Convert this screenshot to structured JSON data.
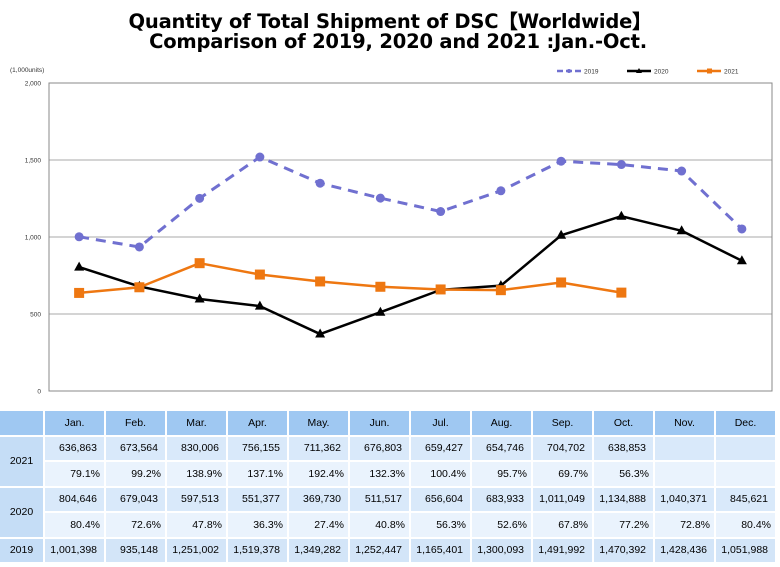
{
  "title": {
    "line1": "Quantity of Total Shipment of DSC【Worldwide】",
    "line2": "Comparison of 2019, 2020 and 2021 :Jan.-Oct."
  },
  "chart_data": {
    "type": "line",
    "title": "Quantity of Total Shipment of DSC【Worldwide】 Comparison of 2019, 2020 and 2021 :Jan.-Oct.",
    "unit_label": "(1,000units)",
    "xlabel": "",
    "ylabel": "(1,000units)",
    "ylim": [
      0,
      2000
    ],
    "yticks": [
      0,
      500,
      1000,
      1500,
      2000
    ],
    "ytick_labels": [
      "0",
      "500",
      "1,000",
      "1,500",
      "2,000"
    ],
    "grid": true,
    "legend_position": "top-right",
    "categories": [
      "Jan.",
      "Feb.",
      "Mar.",
      "Apr.",
      "May.",
      "Jun.",
      "Jul.",
      "Aug.",
      "Sep.",
      "Oct.",
      "Nov.",
      "Dec."
    ],
    "series": [
      {
        "name": "2019",
        "color": "#7070d0",
        "style": "dashed",
        "marker": "circle",
        "values": [
          1001.398,
          935.148,
          1251.002,
          1519.378,
          1349.282,
          1252.447,
          1165.401,
          1300.093,
          1491.992,
          1470.392,
          1428.436,
          1051.988
        ]
      },
      {
        "name": "2020",
        "color": "#000000",
        "style": "solid",
        "marker": "triangle",
        "values": [
          804.646,
          679.043,
          597.513,
          551.377,
          369.73,
          511.517,
          656.604,
          683.933,
          1011.049,
          1134.888,
          1040.371,
          845.621
        ]
      },
      {
        "name": "2021",
        "color": "#ee7711",
        "style": "solid",
        "marker": "square",
        "values": [
          636.863,
          673.564,
          830.006,
          756.155,
          711.362,
          676.803,
          659.427,
          654.746,
          704.702,
          638.853,
          null,
          null
        ]
      }
    ]
  },
  "table": {
    "months": [
      "Jan.",
      "Feb.",
      "Mar.",
      "Apr.",
      "May.",
      "Jun.",
      "Jul.",
      "Aug.",
      "Sep.",
      "Oct.",
      "Nov.",
      "Dec."
    ],
    "rows": [
      {
        "year": "2021",
        "values": [
          "636,863",
          "673,564",
          "830,006",
          "756,155",
          "711,362",
          "676,803",
          "659,427",
          "654,746",
          "704,702",
          "638,853",
          "",
          ""
        ],
        "percents": [
          "79.1%",
          "99.2%",
          "138.9%",
          "137.1%",
          "192.4%",
          "132.3%",
          "100.4%",
          "95.7%",
          "69.7%",
          "56.3%",
          "",
          ""
        ]
      },
      {
        "year": "2020",
        "values": [
          "804,646",
          "679,043",
          "597,513",
          "551,377",
          "369,730",
          "511,517",
          "656,604",
          "683,933",
          "1,011,049",
          "1,134,888",
          "1,040,371",
          "845,621"
        ],
        "percents": [
          "80.4%",
          "72.6%",
          "47.8%",
          "36.3%",
          "27.4%",
          "40.8%",
          "56.3%",
          "52.6%",
          "67.8%",
          "77.2%",
          "72.8%",
          "80.4%"
        ]
      },
      {
        "year": "2019",
        "values": [
          "1,001,398",
          "935,148",
          "1,251,002",
          "1,519,378",
          "1,349,282",
          "1,252,447",
          "1,165,401",
          "1,300,093",
          "1,491,992",
          "1,470,392",
          "1,428,436",
          "1,051,988"
        ]
      }
    ]
  }
}
